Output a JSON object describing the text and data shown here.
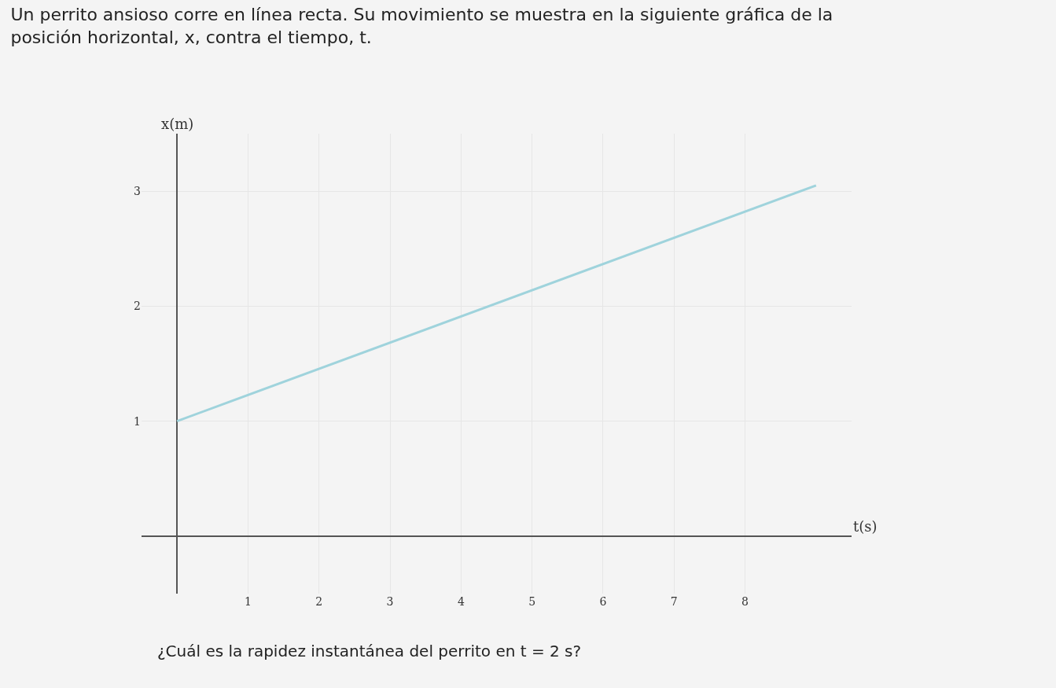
{
  "chart_data": {
    "type": "line",
    "title": "Un perrito ansioso corre en línea recta. Su movimiento se muestra en la siguiente gráfica de la posición horizontal, x, contra el tiempo, t.",
    "xlabel": "t(s)",
    "ylabel": "x(m)",
    "x": [
      0,
      9
    ],
    "series": [
      {
        "color": "#9fd3dc",
        "values": [
          1,
          3.05
        ]
      }
    ],
    "xlim": [
      -0.5,
      9.5
    ],
    "ylim": [
      -0.5,
      3.5
    ],
    "xticks": [
      1,
      2,
      3,
      4,
      5,
      6,
      7,
      8
    ],
    "yticks": [
      1,
      2,
      3
    ],
    "grid": true,
    "marker": "none",
    "line_style": "solid",
    "annotations": [
      "¿Cuál es la rapidez instantánea del perrito en t = 2 s?"
    ]
  }
}
